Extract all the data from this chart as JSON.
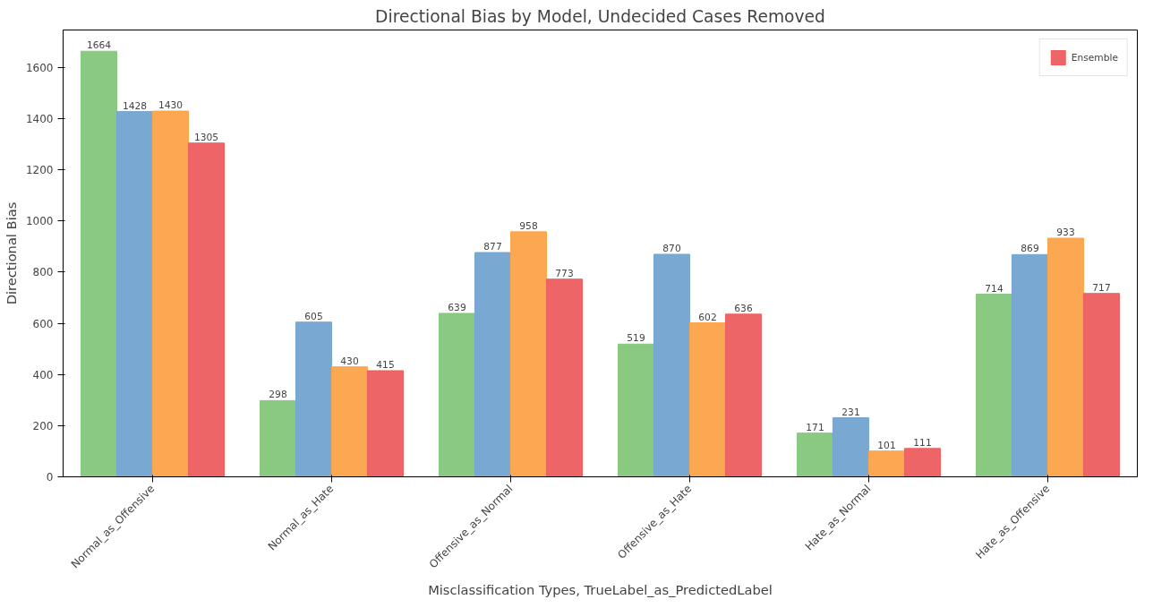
{
  "chart_data": {
    "type": "bar",
    "title": "Directional Bias by Model, Undecided Cases Removed",
    "xlabel": "Misclassification Types, TrueLabel_as_PredictedLabel",
    "ylabel": "Directional Bias",
    "categories": [
      "Normal_as_Offensive",
      "Normal_as_Hate",
      "Offensive_as_Normal",
      "Offensive_as_Hate",
      "Hate_as_Normal",
      "Hate_as_Offensive"
    ],
    "series": [
      {
        "color": "#84c67a",
        "values": [
          1664,
          298,
          639,
          519,
          171,
          714
        ]
      },
      {
        "color": "#72a4d0",
        "values": [
          1428,
          605,
          877,
          870,
          231,
          869
        ]
      },
      {
        "color": "#fca349",
        "values": [
          1430,
          430,
          958,
          602,
          101,
          933
        ]
      },
      {
        "name": "Ensemble",
        "color": "#ec5d5f",
        "values": [
          1305,
          415,
          773,
          636,
          111,
          717
        ]
      }
    ],
    "ylim": [
      0,
      1747
    ],
    "yticks": [
      0,
      200,
      400,
      600,
      800,
      1000,
      1200,
      1400,
      1600
    ],
    "data_labels": true,
    "legend": "top right",
    "grid": false
  }
}
